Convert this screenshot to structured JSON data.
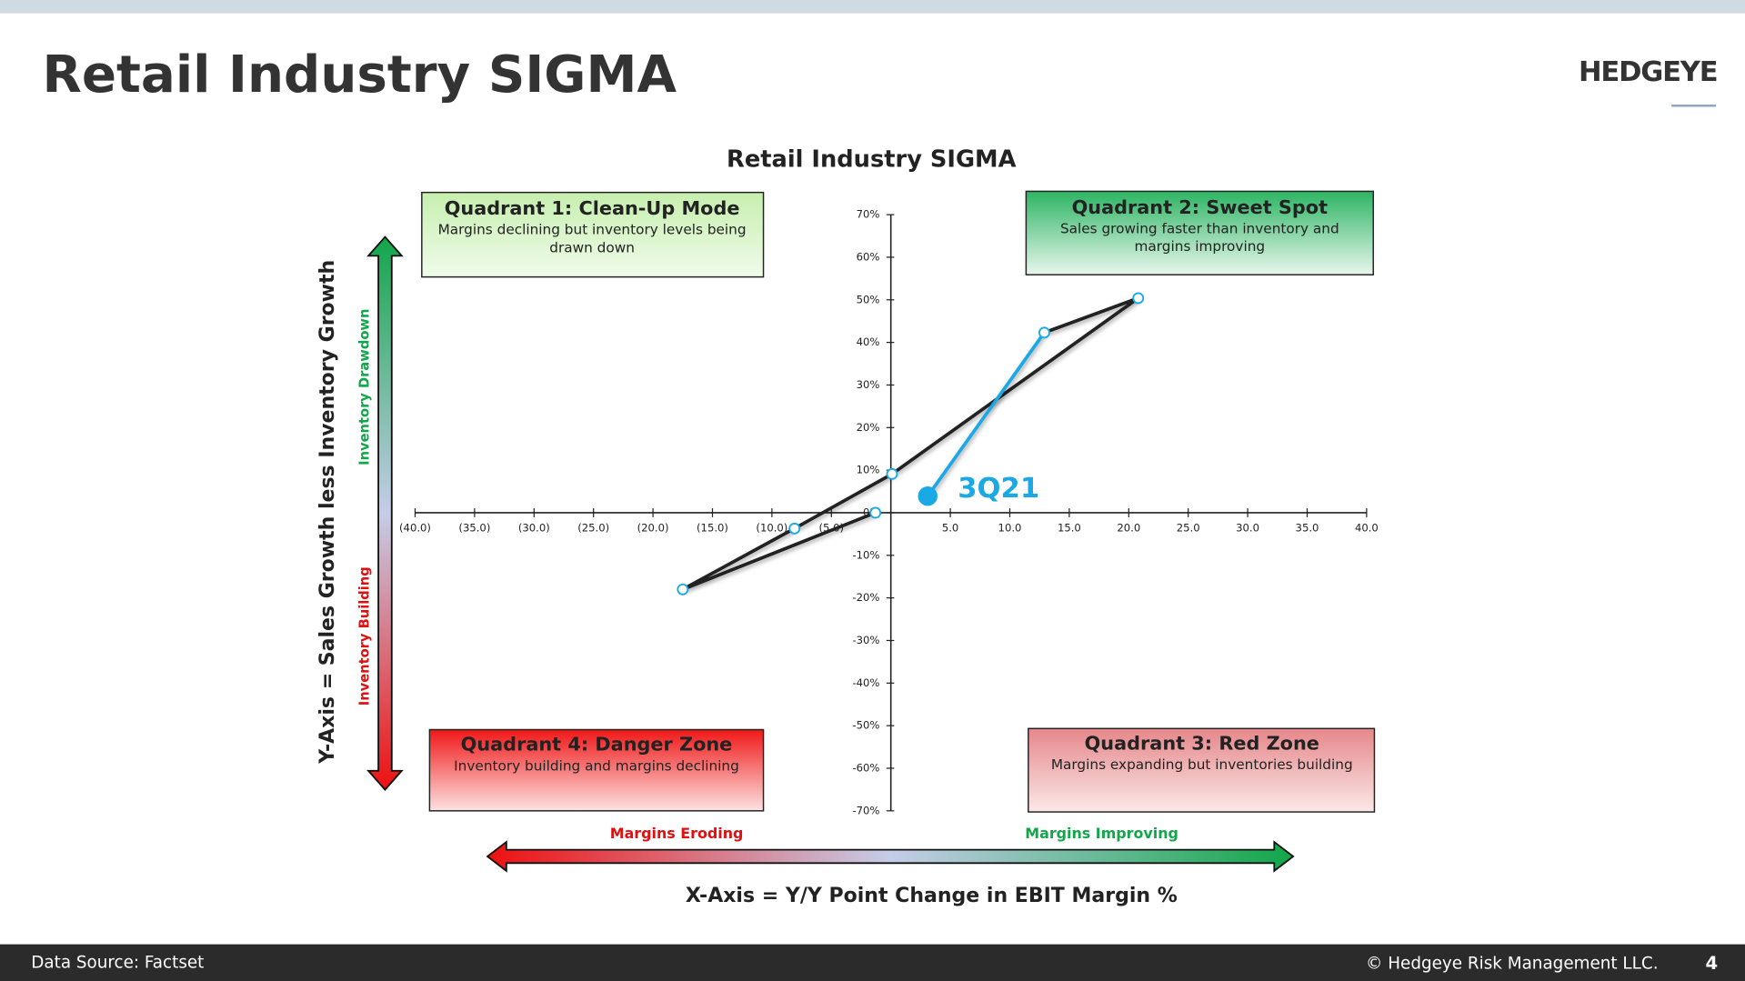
{
  "header": {
    "title": "Retail Industry SIGMA",
    "logo": "HEDGEYE"
  },
  "footer": {
    "source": "Data Source: Factset",
    "copyright": "© Hedgeye Risk Management LLC.",
    "page": "4"
  },
  "chart_data": {
    "type": "line",
    "title": "Retail Industry SIGMA",
    "x_label": "X-Axis = Y/Y Point Change in EBIT Margin %",
    "y_label": "Y-Axis = Sales Growth less Inventory Growth",
    "y_arrow_labels": [
      "Inventory Drawdown",
      "Inventory Building"
    ],
    "x_arrow_labels": [
      "Margins Eroding",
      "Margins Improving"
    ],
    "x": [
      -1.3,
      -17.5,
      -8.1,
      0.1,
      20.8,
      12.9,
      3.1
    ],
    "values": [
      0,
      -18,
      -3.7,
      9.1,
      50.4,
      42.3,
      3.9
    ],
    "color": "#222222",
    "last_segment_color": "#1ba9e6",
    "annotation": "3Q21",
    "xlim": [
      -40,
      40
    ],
    "xticks": [
      {
        "value": -40,
        "label": "(40.0)"
      },
      {
        "value": -35,
        "label": "(35.0)"
      },
      {
        "value": -30,
        "label": "(30.0)"
      },
      {
        "value": -25,
        "label": "(25.0)"
      },
      {
        "value": -20,
        "label": "(20.0)"
      },
      {
        "value": -15,
        "label": "(15.0)"
      },
      {
        "value": -10,
        "label": "(10.0)"
      },
      {
        "value": -5,
        "label": "(5.0)"
      },
      {
        "value": 5,
        "label": "5.0"
      },
      {
        "value": 10,
        "label": "10.0"
      },
      {
        "value": 15,
        "label": "15.0"
      },
      {
        "value": 20,
        "label": "20.0"
      },
      {
        "value": 25,
        "label": "25.0"
      },
      {
        "value": 30,
        "label": "30.0"
      },
      {
        "value": 35,
        "label": "35.0"
      },
      {
        "value": 40,
        "label": "40.0"
      }
    ],
    "ylim": [
      -70,
      70
    ],
    "yticks": [
      {
        "value": 70,
        "label": "70%"
      },
      {
        "value": 60,
        "label": "60%"
      },
      {
        "value": 50,
        "label": "50%"
      },
      {
        "value": 40,
        "label": "40%"
      },
      {
        "value": 30,
        "label": "30%"
      },
      {
        "value": 20,
        "label": "20%"
      },
      {
        "value": 10,
        "label": "10%"
      },
      {
        "value": 0,
        "label": "0%"
      },
      {
        "value": -10,
        "label": "-10%"
      },
      {
        "value": -20,
        "label": "-20%"
      },
      {
        "value": -30,
        "label": "-30%"
      },
      {
        "value": -40,
        "label": "-40%"
      },
      {
        "value": -50,
        "label": "-50%"
      },
      {
        "value": -60,
        "label": "-60%"
      },
      {
        "value": -70,
        "label": "-70%"
      }
    ],
    "quadrants": [
      {
        "title": "Quadrant 1: Clean-Up Mode",
        "lines": [
          "Margins declining but inventory levels being",
          "drawn down"
        ]
      },
      {
        "title": "Quadrant 2: Sweet Spot",
        "lines": [
          "Sales growing faster than inventory and",
          "margins improving"
        ]
      },
      {
        "title": "Quadrant 4: Danger Zone",
        "lines": [
          "Inventory building and margins declining"
        ]
      },
      {
        "title": "Quadrant 3: Red Zone",
        "lines": [
          "Margins expanding but inventories building"
        ]
      }
    ]
  }
}
